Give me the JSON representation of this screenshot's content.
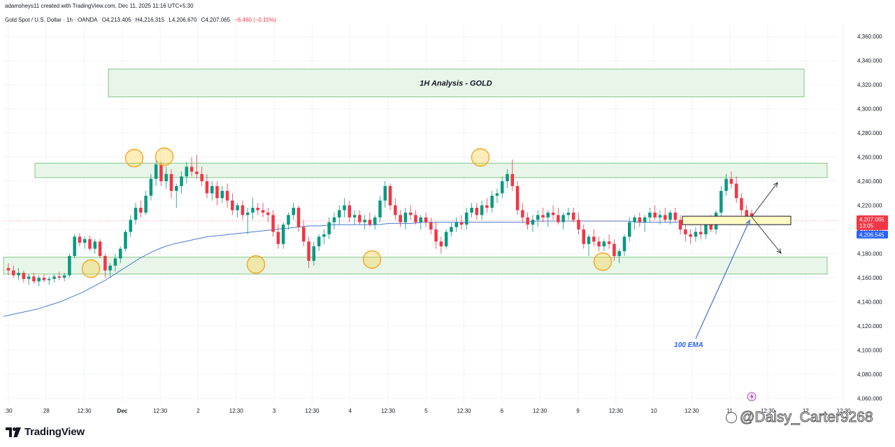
{
  "header": {
    "created_line": "adamsheys11 created with TradingView.com, Dec 11, 2025 11:16 UTC+5:30",
    "symbol": "Gold Spot / U.S. Dollar · 1h · OANDA",
    "open": "O4,213.405",
    "high": "H4,216.315",
    "low": "L4,206.670",
    "close": "C4,207.065",
    "change": "−6.460 (−0.15%)"
  },
  "brand": {
    "logo_text": "TradingView"
  },
  "watermark": "@Daisy_Carter9268",
  "chart_data": {
    "type": "candlestick",
    "title": "1H Analysis - GOLD",
    "y_axis": {
      "min": 4055,
      "max": 4370,
      "ticks": [
        4060,
        4080,
        4100,
        4120,
        4140,
        4160,
        4180,
        4200,
        4220,
        4240,
        4260,
        4280,
        4300,
        4320,
        4340,
        4360
      ],
      "tick_labels": [
        "4,060.000",
        "4,080.000",
        "4,100.000",
        "4,120.000",
        "4,140.000",
        "4,160.000",
        "4,180.000",
        "4,200.000",
        "4,220.000",
        "4,240.000",
        "4,260.000",
        "4,280.000",
        "4,300.000",
        "4,320.000",
        "4,340.000",
        "4,360.000"
      ]
    },
    "x_axis": {
      "labels": [
        ":30",
        "28",
        "12:30",
        "Dec",
        "12:30",
        "2",
        "12:30",
        "3",
        "12:30",
        "4",
        "12:30",
        "5",
        "12:30",
        "6",
        "12:30",
        "9",
        "12:30",
        "10",
        "12:30",
        "11",
        "12:30",
        "12",
        "12:30"
      ],
      "bold": [
        "Dec"
      ]
    },
    "price_labels": {
      "last": "4,207.065",
      "countdown": "13:05",
      "ema": "4,206.545",
      "last_value": 4207.065,
      "ema_value": 4206.545
    },
    "annotations": {
      "title_box_text": "1H Analysis - GOLD",
      "ema_label": "100 EMA",
      "resistance_zone": [
        4243,
        4255
      ],
      "support_zone": [
        4163,
        4177
      ],
      "entry_zone": [
        4204,
        4211
      ],
      "title_zone": [
        4310,
        4333
      ]
    },
    "series": [
      {
        "name": "Gold Spot / U.S. Dollar",
        "ohlc": [
          [
            4168,
            4172,
            4162,
            4166
          ],
          [
            4166,
            4170,
            4160,
            4162
          ],
          [
            4162,
            4168,
            4158,
            4164
          ],
          [
            4164,
            4166,
            4156,
            4159
          ],
          [
            4159,
            4163,
            4154,
            4161
          ],
          [
            4161,
            4164,
            4155,
            4157
          ],
          [
            4157,
            4162,
            4153,
            4160
          ],
          [
            4160,
            4163,
            4156,
            4158
          ],
          [
            4158,
            4161,
            4154,
            4159
          ],
          [
            4159,
            4163,
            4156,
            4161
          ],
          [
            4161,
            4165,
            4158,
            4160
          ],
          [
            4160,
            4164,
            4157,
            4162
          ],
          [
            4162,
            4180,
            4160,
            4178
          ],
          [
            4178,
            4196,
            4176,
            4194
          ],
          [
            4194,
            4197,
            4186,
            4189
          ],
          [
            4189,
            4194,
            4184,
            4192
          ],
          [
            4192,
            4195,
            4182,
            4184
          ],
          [
            4184,
            4192,
            4180,
            4190
          ],
          [
            4190,
            4192,
            4176,
            4178
          ],
          [
            4178,
            4180,
            4160,
            4166
          ],
          [
            4166,
            4172,
            4160,
            4170
          ],
          [
            4170,
            4180,
            4165,
            4176
          ],
          [
            4176,
            4186,
            4172,
            4184
          ],
          [
            4184,
            4200,
            4182,
            4198
          ],
          [
            4198,
            4212,
            4194,
            4208
          ],
          [
            4208,
            4222,
            4204,
            4218
          ],
          [
            4218,
            4224,
            4210,
            4214
          ],
          [
            4214,
            4232,
            4212,
            4228
          ],
          [
            4228,
            4246,
            4224,
            4242
          ],
          [
            4242,
            4258,
            4236,
            4254
          ],
          [
            4254,
            4256,
            4236,
            4240
          ],
          [
            4240,
            4252,
            4234,
            4246
          ],
          [
            4246,
            4250,
            4226,
            4232
          ],
          [
            4232,
            4238,
            4218,
            4236
          ],
          [
            4236,
            4248,
            4230,
            4244
          ],
          [
            4244,
            4256,
            4238,
            4252
          ],
          [
            4252,
            4260,
            4244,
            4248
          ],
          [
            4248,
            4262,
            4242,
            4246
          ],
          [
            4246,
            4252,
            4236,
            4240
          ],
          [
            4240,
            4246,
            4226,
            4230
          ],
          [
            4230,
            4240,
            4224,
            4236
          ],
          [
            4236,
            4240,
            4220,
            4226
          ],
          [
            4226,
            4236,
            4222,
            4232
          ],
          [
            4232,
            4238,
            4218,
            4224
          ],
          [
            4224,
            4230,
            4212,
            4216
          ],
          [
            4216,
            4222,
            4210,
            4220
          ],
          [
            4220,
            4224,
            4208,
            4212
          ],
          [
            4212,
            4218,
            4196,
            4214
          ],
          [
            4214,
            4226,
            4208,
            4218
          ],
          [
            4218,
            4222,
            4212,
            4216
          ],
          [
            4216,
            4222,
            4210,
            4214
          ],
          [
            4214,
            4218,
            4206,
            4212
          ],
          [
            4212,
            4216,
            4194,
            4198
          ],
          [
            4198,
            4204,
            4184,
            4188
          ],
          [
            4188,
            4206,
            4184,
            4204
          ],
          [
            4204,
            4214,
            4200,
            4212
          ],
          [
            4212,
            4222,
            4208,
            4218
          ],
          [
            4218,
            4220,
            4198,
            4202
          ],
          [
            4202,
            4208,
            4186,
            4190
          ],
          [
            4190,
            4194,
            4168,
            4174
          ],
          [
            4174,
            4190,
            4170,
            4186
          ],
          [
            4186,
            4196,
            4182,
            4194
          ],
          [
            4194,
            4200,
            4188,
            4196
          ],
          [
            4196,
            4210,
            4192,
            4206
          ],
          [
            4206,
            4214,
            4200,
            4210
          ],
          [
            4210,
            4220,
            4204,
            4216
          ],
          [
            4216,
            4226,
            4210,
            4220
          ],
          [
            4220,
            4224,
            4206,
            4210
          ],
          [
            4210,
            4216,
            4204,
            4212
          ],
          [
            4212,
            4216,
            4204,
            4206
          ],
          [
            4206,
            4212,
            4200,
            4208
          ],
          [
            4208,
            4214,
            4202,
            4204
          ],
          [
            4204,
            4212,
            4200,
            4210
          ],
          [
            4210,
            4228,
            4206,
            4224
          ],
          [
            4224,
            4240,
            4218,
            4236
          ],
          [
            4236,
            4238,
            4216,
            4220
          ],
          [
            4220,
            4226,
            4208,
            4212
          ],
          [
            4212,
            4216,
            4202,
            4206
          ],
          [
            4206,
            4218,
            4200,
            4214
          ],
          [
            4214,
            4220,
            4208,
            4212
          ],
          [
            4212,
            4216,
            4204,
            4206
          ],
          [
            4206,
            4212,
            4200,
            4210
          ],
          [
            4210,
            4214,
            4202,
            4206
          ],
          [
            4206,
            4210,
            4196,
            4200
          ],
          [
            4200,
            4206,
            4184,
            4190
          ],
          [
            4190,
            4194,
            4180,
            4186
          ],
          [
            4186,
            4200,
            4184,
            4198
          ],
          [
            4198,
            4206,
            4194,
            4202
          ],
          [
            4202,
            4210,
            4198,
            4206
          ],
          [
            4206,
            4212,
            4200,
            4204
          ],
          [
            4204,
            4218,
            4200,
            4214
          ],
          [
            4214,
            4222,
            4210,
            4218
          ],
          [
            4218,
            4222,
            4208,
            4212
          ],
          [
            4212,
            4224,
            4208,
            4220
          ],
          [
            4220,
            4226,
            4214,
            4218
          ],
          [
            4218,
            4232,
            4214,
            4228
          ],
          [
            4228,
            4234,
            4222,
            4230
          ],
          [
            4230,
            4244,
            4226,
            4240
          ],
          [
            4240,
            4250,
            4234,
            4246
          ],
          [
            4246,
            4258,
            4232,
            4236
          ],
          [
            4236,
            4240,
            4212,
            4216
          ],
          [
            4216,
            4222,
            4206,
            4210
          ],
          [
            4210,
            4214,
            4200,
            4204
          ],
          [
            4204,
            4212,
            4198,
            4208
          ],
          [
            4208,
            4216,
            4202,
            4212
          ],
          [
            4212,
            4218,
            4206,
            4210
          ],
          [
            4210,
            4216,
            4202,
            4214
          ],
          [
            4214,
            4220,
            4208,
            4212
          ],
          [
            4212,
            4218,
            4204,
            4206
          ],
          [
            4206,
            4214,
            4200,
            4212
          ],
          [
            4212,
            4218,
            4208,
            4214
          ],
          [
            4214,
            4218,
            4206,
            4208
          ],
          [
            4208,
            4214,
            4196,
            4200
          ],
          [
            4200,
            4204,
            4184,
            4188
          ],
          [
            4188,
            4196,
            4178,
            4194
          ],
          [
            4194,
            4200,
            4186,
            4190
          ],
          [
            4190,
            4194,
            4182,
            4186
          ],
          [
            4186,
            4192,
            4182,
            4190
          ],
          [
            4190,
            4196,
            4184,
            4188
          ],
          [
            4188,
            4192,
            4174,
            4178
          ],
          [
            4178,
            4184,
            4172,
            4182
          ],
          [
            4182,
            4196,
            4178,
            4194
          ],
          [
            4194,
            4210,
            4190,
            4206
          ],
          [
            4206,
            4212,
            4200,
            4210
          ],
          [
            4210,
            4214,
            4202,
            4206
          ],
          [
            4206,
            4212,
            4198,
            4210
          ],
          [
            4210,
            4218,
            4206,
            4214
          ],
          [
            4214,
            4220,
            4208,
            4210
          ],
          [
            4210,
            4216,
            4204,
            4212
          ],
          [
            4212,
            4218,
            4206,
            4208
          ],
          [
            4208,
            4216,
            4204,
            4214
          ],
          [
            4214,
            4218,
            4206,
            4208
          ],
          [
            4208,
            4212,
            4196,
            4200
          ],
          [
            4200,
            4206,
            4190,
            4196
          ],
          [
            4196,
            4200,
            4188,
            4194
          ],
          [
            4194,
            4202,
            4190,
            4198
          ],
          [
            4198,
            4204,
            4192,
            4196
          ],
          [
            4196,
            4210,
            4192,
            4206
          ],
          [
            4206,
            4212,
            4198,
            4200
          ],
          [
            4200,
            4216,
            4196,
            4214
          ],
          [
            4214,
            4236,
            4210,
            4232
          ],
          [
            4232,
            4246,
            4228,
            4242
          ],
          [
            4242,
            4248,
            4234,
            4238
          ],
          [
            4238,
            4244,
            4222,
            4226
          ],
          [
            4226,
            4230,
            4212,
            4216
          ],
          [
            4216,
            4220,
            4208,
            4211
          ],
          [
            4213.405,
            4216.315,
            4206.67,
            4207.065
          ]
        ]
      },
      {
        "name": "100 EMA",
        "values": [
          4128,
          4130,
          4132,
          4134,
          4137,
          4140,
          4144,
          4148,
          4153,
          4158,
          4164,
          4170,
          4176,
          4181,
          4185,
          4188,
          4190,
          4192,
          4194,
          4195,
          4196,
          4197,
          4198,
          4199,
          4200,
          4201,
          4202,
          4203,
          4203,
          4204,
          4204,
          4204,
          4204,
          4204,
          4205,
          4205,
          4205,
          4206,
          4206,
          4206,
          4206,
          4206,
          4206,
          4206,
          4206,
          4206,
          4206,
          4207,
          4207,
          4207,
          4207,
          4207,
          4207,
          4207,
          4207,
          4207,
          4206,
          4206,
          4206,
          4206,
          4206,
          4206,
          4206,
          4206,
          4206,
          4206,
          4206.545
        ]
      }
    ]
  }
}
